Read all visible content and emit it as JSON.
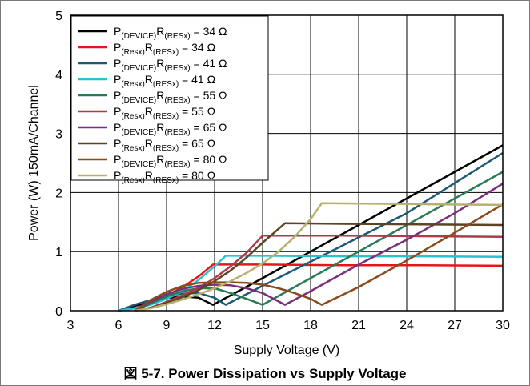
{
  "caption": "図 5-7. Power Dissipation vs Supply Voltage",
  "chart_data": {
    "type": "line",
    "title": "",
    "xlabel": "Supply Voltage (V)",
    "ylabel": "Power (W) 150mA/Channel",
    "xlim": [
      3,
      30
    ],
    "ylim": [
      0,
      5
    ],
    "xticks": [
      "3",
      "6",
      "9",
      "12",
      "15",
      "18",
      "21",
      "24",
      "27",
      "30"
    ],
    "yticks": [
      "0",
      "1",
      "2",
      "3",
      "4",
      "5"
    ],
    "grid": true,
    "legend_position": "top-left",
    "series": [
      {
        "name_main": "P",
        "name_sub": "(DEVICE)",
        "name_r": "R",
        "name_rsub": "(RESx)",
        "name_tail": " = 34 Ω",
        "color": "#000000",
        "x": [
          6,
          7,
          8,
          9,
          10,
          11,
          11.9,
          15,
          18,
          21,
          24,
          27,
          30
        ],
        "y": [
          0,
          0.08,
          0.15,
          0.21,
          0.24,
          0.22,
          0.1,
          0.55,
          1.0,
          1.45,
          1.9,
          2.35,
          2.8
        ]
      },
      {
        "name_main": "P",
        "name_sub": "(Resx)",
        "name_r": "R",
        "name_rsub": "(RESx)",
        "name_tail": " = 34 Ω",
        "color": "#e8141b",
        "x": [
          6,
          7,
          8,
          9,
          10,
          11,
          11.9,
          15,
          20,
          25,
          30
        ],
        "y": [
          0,
          0.04,
          0.12,
          0.25,
          0.4,
          0.58,
          0.78,
          0.78,
          0.77,
          0.77,
          0.76
        ]
      },
      {
        "name_main": "P",
        "name_sub": "(DEVICE)",
        "name_r": "R",
        "name_rsub": "(RESx)",
        "name_tail": " = 41 Ω",
        "color": "#1d5874",
        "x": [
          6,
          7,
          8,
          9,
          10,
          11,
          12,
          12.7,
          15,
          18,
          21,
          24,
          27,
          30
        ],
        "y": [
          0,
          0.1,
          0.18,
          0.25,
          0.29,
          0.3,
          0.22,
          0.1,
          0.42,
          0.83,
          1.24,
          1.65,
          2.16,
          2.67
        ]
      },
      {
        "name_main": "P",
        "name_sub": "(Resx)",
        "name_r": "R",
        "name_rsub": "(RESx)",
        "name_tail": " = 41 Ω",
        "color": "#26c2d4",
        "x": [
          6,
          7,
          8,
          9,
          10,
          11,
          12,
          12.7,
          15,
          20,
          25,
          30
        ],
        "y": [
          0,
          0.04,
          0.1,
          0.2,
          0.33,
          0.52,
          0.75,
          0.93,
          0.93,
          0.92,
          0.92,
          0.91
        ]
      },
      {
        "name_main": "P",
        "name_sub": "(DEVICE)",
        "name_r": "R",
        "name_rsub": "(RESx)",
        "name_tail": " = 55 Ω",
        "color": "#2a7a55",
        "x": [
          7,
          8,
          9,
          10,
          11,
          12,
          13,
          14,
          15,
          18,
          21,
          24,
          27,
          30
        ],
        "y": [
          0,
          0.12,
          0.24,
          0.33,
          0.38,
          0.38,
          0.3,
          0.2,
          0.1,
          0.55,
          1.0,
          1.45,
          1.9,
          2.35
        ]
      },
      {
        "name_main": "P",
        "name_sub": "(Resx)",
        "name_r": "R",
        "name_rsub": "(RESx)",
        "name_tail": " = 55 Ω",
        "color": "#b03a4a",
        "x": [
          7,
          8,
          9,
          10,
          11,
          12,
          13,
          14,
          15,
          20,
          25,
          30
        ],
        "y": [
          0,
          0.05,
          0.15,
          0.26,
          0.39,
          0.55,
          0.75,
          0.98,
          1.27,
          1.27,
          1.26,
          1.25
        ]
      },
      {
        "name_main": "P",
        "name_sub": "(DEVICE)",
        "name_r": "R",
        "name_rsub": "(RESx)",
        "name_tail": " = 65 Ω",
        "color": "#7a2f7a",
        "x": [
          7,
          8,
          9,
          10,
          11,
          12,
          13,
          14,
          15,
          16.4,
          18,
          21,
          24,
          27,
          30
        ],
        "y": [
          0,
          0.15,
          0.28,
          0.37,
          0.42,
          0.44,
          0.43,
          0.38,
          0.3,
          0.1,
          0.33,
          0.78,
          1.2,
          1.65,
          2.15
        ]
      },
      {
        "name_main": "P",
        "name_sub": "(Resx)",
        "name_r": "R",
        "name_rsub": "(RESx)",
        "name_tail": " = 65 Ω",
        "color": "#5c4322",
        "x": [
          7,
          8,
          9,
          10,
          11,
          12,
          13,
          14,
          15,
          16.4,
          20,
          25,
          30
        ],
        "y": [
          0,
          0.05,
          0.13,
          0.23,
          0.35,
          0.5,
          0.68,
          0.9,
          1.15,
          1.48,
          1.47,
          1.46,
          1.45
        ]
      },
      {
        "name_main": "P",
        "name_sub": "(DEVICE)",
        "name_r": "R",
        "name_rsub": "(RESx)",
        "name_tail": " = 80 Ω",
        "color": "#8a4a1c",
        "x": [
          7,
          8,
          9,
          10,
          11,
          12,
          13,
          14,
          15,
          16,
          17,
          18,
          18.7,
          21,
          24,
          27,
          30
        ],
        "y": [
          0,
          0.18,
          0.32,
          0.42,
          0.47,
          0.48,
          0.48,
          0.47,
          0.44,
          0.38,
          0.3,
          0.2,
          0.1,
          0.4,
          0.85,
          1.32,
          1.8
        ]
      },
      {
        "name_main": "P",
        "name_sub": "(Resx)",
        "name_r": "R",
        "name_rsub": "(RESx)",
        "name_tail": " = 80 Ω",
        "color": "#b8b070",
        "x": [
          7,
          8,
          9,
          10,
          11,
          12,
          13,
          14,
          15,
          16,
          17,
          18,
          18.7,
          22,
          26,
          30
        ],
        "y": [
          0,
          0.04,
          0.11,
          0.19,
          0.28,
          0.38,
          0.5,
          0.64,
          0.8,
          1.0,
          1.25,
          1.55,
          1.82,
          1.81,
          1.8,
          1.79
        ]
      }
    ]
  }
}
